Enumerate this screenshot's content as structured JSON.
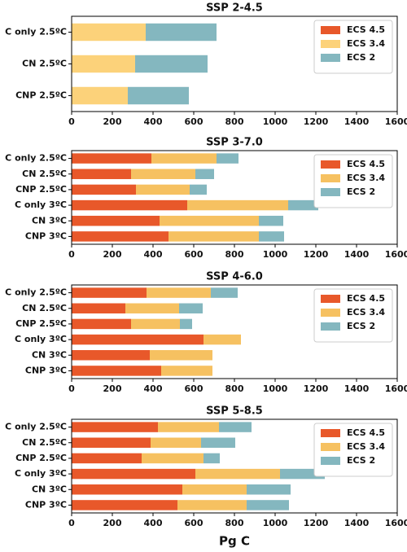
{
  "chart_data": [
    {
      "type": "bar",
      "orientation": "horizontal",
      "stacked": true,
      "title": "SSP 2-4.5",
      "categories": [
        "C only 2.5ºC",
        "CN 2.5ºC",
        "CNP 2.5ºC"
      ],
      "series": [
        {
          "name": "ECS 4.5",
          "color": "#e8582a",
          "values": [
            null,
            null,
            null
          ]
        },
        {
          "name": "ECS 3.4",
          "color": "#fcd27a",
          "values": [
            364,
            312,
            276
          ]
        },
        {
          "name": "ECS 2",
          "color": "#84b7bf",
          "values": [
            348,
            356,
            300
          ]
        }
      ],
      "xlim": [
        0,
        1600
      ],
      "xticks": [
        0,
        200,
        400,
        600,
        800,
        1000,
        1200,
        1400,
        1600
      ],
      "legend": "upper right"
    },
    {
      "type": "bar",
      "orientation": "horizontal",
      "stacked": true,
      "title": "SSP 3-7.0",
      "categories": [
        "C only 2.5ºC",
        "CN 2.5ºC",
        "CNP 2.5ºC",
        "C only 3ºC",
        "CN 3ºC",
        "CNP 3ºC"
      ],
      "series": [
        {
          "name": "ECS 4.5",
          "color": "#e8582a",
          "values": [
            392,
            292,
            316,
            568,
            432,
            476
          ]
        },
        {
          "name": "ECS 3.4",
          "color": "#f6c161",
          "values": [
            320,
            316,
            264,
            496,
            488,
            444
          ]
        },
        {
          "name": "ECS 2",
          "color": "#84b7bf",
          "values": [
            108,
            92,
            84,
            148,
            120,
            124
          ]
        }
      ],
      "xlim": [
        0,
        1600
      ],
      "xticks": [
        0,
        200,
        400,
        600,
        800,
        1000,
        1200,
        1400,
        1600
      ],
      "legend": "upper right"
    },
    {
      "type": "bar",
      "orientation": "horizontal",
      "stacked": true,
      "title": "SSP 4-6.0",
      "categories": [
        "C only 2.5ºC",
        "CN 2.5ºC",
        "CNP 2.5ºC",
        "C only 3ºC",
        "CN 3ºC",
        "CNP 3ºC"
      ],
      "series": [
        {
          "name": "ECS 4.5",
          "color": "#e8582a",
          "values": [
            368,
            264,
            292,
            648,
            384,
            440
          ]
        },
        {
          "name": "ECS 3.4",
          "color": "#f6c161",
          "values": [
            316,
            264,
            240,
            184,
            308,
            252
          ]
        },
        {
          "name": "ECS 2",
          "color": "#84b7bf",
          "values": [
            132,
            116,
            60,
            null,
            null,
            null
          ]
        }
      ],
      "xlim": [
        0,
        1600
      ],
      "xticks": [
        0,
        200,
        400,
        600,
        800,
        1000,
        1200,
        1400,
        1600
      ],
      "legend": "upper right"
    },
    {
      "type": "bar",
      "orientation": "horizontal",
      "stacked": true,
      "title": "SSP 5-8.5",
      "categories": [
        "C only 2.5ºC",
        "CN 2.5ºC",
        "CNP 2.5ºC",
        "C only 3ºC",
        "CN 3ºC",
        "CNP 3ºC"
      ],
      "series": [
        {
          "name": "ECS 4.5",
          "color": "#e8582a",
          "values": [
            424,
            388,
            344,
            608,
            544,
            520
          ]
        },
        {
          "name": "ECS 3.4",
          "color": "#f6c161",
          "values": [
            300,
            248,
            304,
            416,
            316,
            340
          ]
        },
        {
          "name": "ECS 2",
          "color": "#84b7bf",
          "values": [
            160,
            168,
            80,
            220,
            216,
            208
          ]
        }
      ],
      "xlim": [
        0,
        1600
      ],
      "xticks": [
        0,
        200,
        400,
        600,
        800,
        1000,
        1200,
        1400,
        1600
      ],
      "legend": "upper right",
      "xlabel": "Pg C"
    }
  ]
}
